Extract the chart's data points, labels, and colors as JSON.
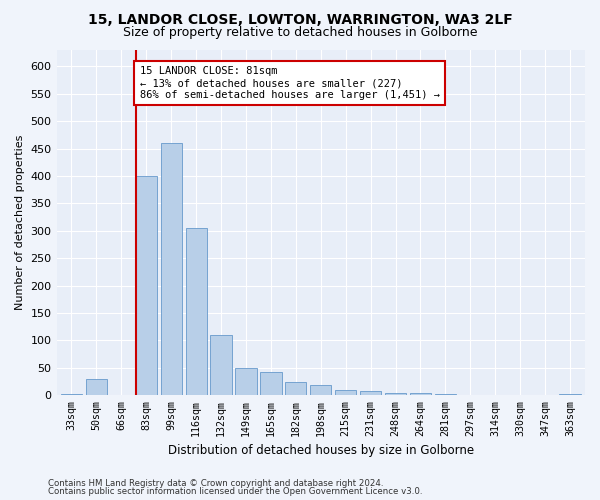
{
  "title_line1": "15, LANDOR CLOSE, LOWTON, WARRINGTON, WA3 2LF",
  "title_line2": "Size of property relative to detached houses in Golborne",
  "xlabel": "Distribution of detached houses by size in Golborne",
  "ylabel": "Number of detached properties",
  "bar_color": "#b8cfe8",
  "bar_edge_color": "#6699cc",
  "categories": [
    "33sqm",
    "50sqm",
    "66sqm",
    "83sqm",
    "99sqm",
    "116sqm",
    "132sqm",
    "149sqm",
    "165sqm",
    "182sqm",
    "198sqm",
    "215sqm",
    "231sqm",
    "248sqm",
    "264sqm",
    "281sqm",
    "297sqm",
    "314sqm",
    "330sqm",
    "347sqm",
    "363sqm"
  ],
  "values": [
    2,
    30,
    0,
    400,
    460,
    305,
    110,
    50,
    42,
    25,
    18,
    10,
    8,
    5,
    5,
    2,
    0,
    0,
    0,
    0,
    2
  ],
  "ylim": [
    0,
    630
  ],
  "yticks": [
    0,
    50,
    100,
    150,
    200,
    250,
    300,
    350,
    400,
    450,
    500,
    550,
    600
  ],
  "vline_color": "#cc0000",
  "vline_x_index": 2.58,
  "annotation_text": "15 LANDOR CLOSE: 81sqm\n← 13% of detached houses are smaller (227)\n86% of semi-detached houses are larger (1,451) →",
  "annotation_box_color": "#ffffff",
  "annotation_border_color": "#cc0000",
  "footer_line1": "Contains HM Land Registry data © Crown copyright and database right 2024.",
  "footer_line2": "Contains public sector information licensed under the Open Government Licence v3.0.",
  "background_color": "#f0f4fb",
  "plot_background_color": "#e8eef8"
}
